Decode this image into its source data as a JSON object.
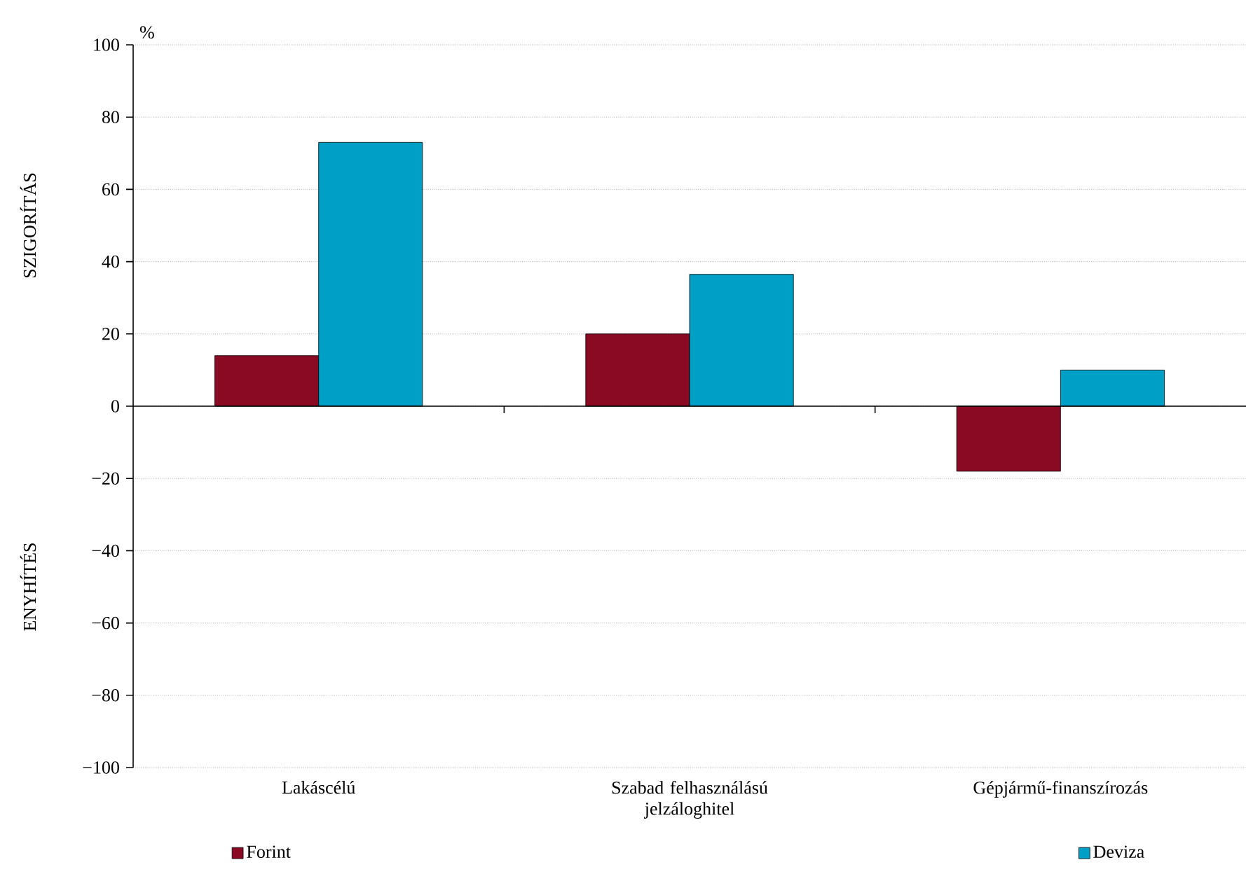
{
  "chart_data": {
    "type": "bar",
    "ylabel": "%",
    "annotations": [
      "SZIGORÍTÁS",
      "ENYHÍTÉS"
    ],
    "categories": [
      "Lakáscélú",
      "Szabad felhasználású jelzáloghitel",
      "Gépjármű-finanszírozás"
    ],
    "series": [
      {
        "name": "Forint",
        "color": "#8b0a23",
        "values": [
          14,
          20,
          -18
        ]
      },
      {
        "name": "Deviza",
        "color": "#00a0c6",
        "values": [
          73,
          36.5,
          10
        ]
      }
    ],
    "ylim": [
      -100,
      100
    ],
    "yticks": [
      {
        "value": -100,
        "label": "−100"
      },
      {
        "value": -80,
        "label": "−80"
      },
      {
        "value": -60,
        "label": "−60"
      },
      {
        "value": -40,
        "label": "−40"
      },
      {
        "value": -20,
        "label": "−20"
      },
      0,
      20,
      40,
      60,
      80,
      100
    ],
    "grid": "y",
    "legend": "bottom"
  }
}
